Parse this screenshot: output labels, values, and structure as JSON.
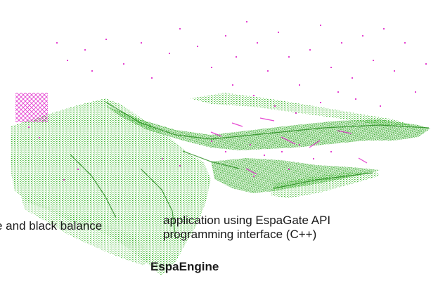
{
  "labels": {
    "left_fragment": "e and black balance",
    "application_line1": "application using EspaGate API",
    "application_line2": "programming interface (C++)",
    "engine": "EspaEngine"
  },
  "colors": {
    "surface_points": "#3cb52e",
    "highlight_points": "#e020c8",
    "background": "#ffffff",
    "text": "#1a1a1a"
  },
  "image": {
    "kind": "3D point cloud rendering",
    "layers": [
      "green surface points",
      "magenta sparse points"
    ]
  }
}
